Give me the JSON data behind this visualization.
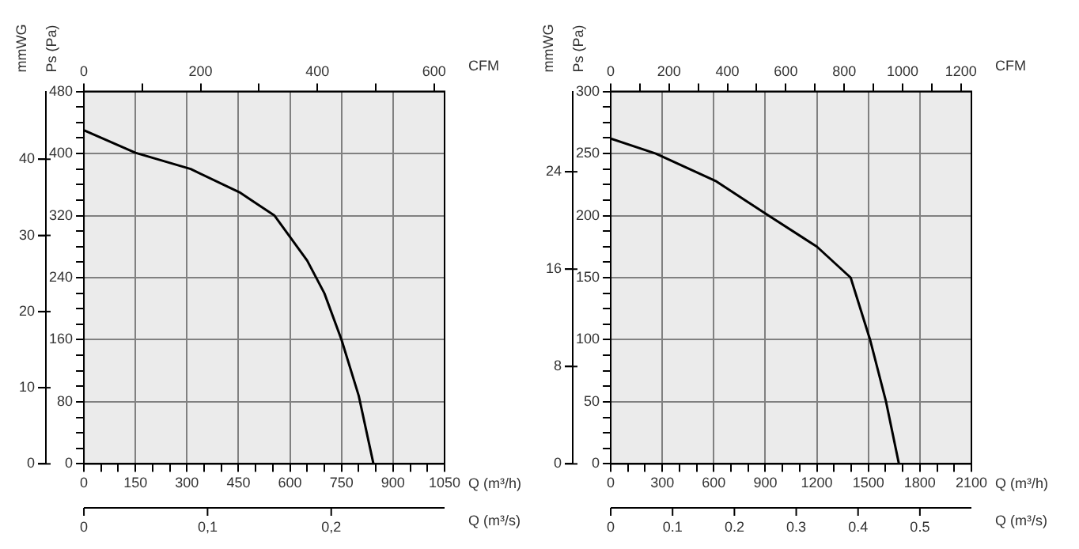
{
  "chart_data": [
    {
      "type": "line",
      "xlabel": "Q (m³/h)",
      "ylabel": "Ps (Pa)",
      "y2label": "mmWG",
      "x2label": "CFM",
      "grid": true,
      "marker": "none",
      "line_style": "solid",
      "series": [
        {
          "color": "#000000",
          "x": [
            0,
            150,
            311,
            453,
            555,
            650,
            700,
            750,
            800,
            843
          ],
          "values": [
            430,
            401,
            380,
            350,
            320,
            262,
            220,
            160,
            88,
            0
          ]
        }
      ],
      "xlim": [
        0,
        1050
      ],
      "xticks": [
        0,
        {
          "value": 50,
          "label": null
        },
        {
          "value": 100,
          "label": null
        },
        150,
        {
          "value": 200,
          "label": null
        },
        {
          "value": 250,
          "label": null
        },
        300,
        {
          "value": 350,
          "label": null
        },
        {
          "value": 400,
          "label": null
        },
        450,
        {
          "value": 500,
          "label": null
        },
        {
          "value": 550,
          "label": null
        },
        600,
        {
          "value": 650,
          "label": null
        },
        {
          "value": 700,
          "label": null
        },
        750,
        {
          "value": 800,
          "label": null
        },
        {
          "value": 850,
          "label": null
        },
        900,
        {
          "value": 950,
          "label": null
        },
        {
          "value": 1000,
          "label": null
        },
        1050
      ],
      "ylim": [
        0,
        480
      ],
      "yticks": [
        0,
        {
          "value": 20,
          "label": null
        },
        {
          "value": 40,
          "label": null
        },
        {
          "value": 60,
          "label": null
        },
        80,
        {
          "value": 100,
          "label": null
        },
        {
          "value": 120,
          "label": null
        },
        {
          "value": 140,
          "label": null
        },
        160,
        {
          "value": 180,
          "label": null
        },
        {
          "value": 200,
          "label": null
        },
        {
          "value": 220,
          "label": null
        },
        240,
        {
          "value": 260,
          "label": null
        },
        {
          "value": 280,
          "label": null
        },
        {
          "value": 300,
          "label": null
        },
        320,
        {
          "value": 340,
          "label": null
        },
        {
          "value": 360,
          "label": null
        },
        {
          "value": 380,
          "label": null
        },
        400,
        {
          "value": 420,
          "label": null
        },
        {
          "value": 440,
          "label": null
        },
        {
          "value": 460,
          "label": null
        },
        480
      ],
      "y2lim": [
        0,
        48.9
      ],
      "y2ticks": [
        0,
        10,
        20,
        30,
        40
      ],
      "x2lim": [
        0,
        618
      ],
      "x2ticks": [
        0,
        {
          "value": 100,
          "label": null
        },
        200,
        {
          "value": 300,
          "label": null
        },
        400,
        {
          "value": 500,
          "label": null
        },
        600
      ],
      "annotations": [
        "Q (m³/s)",
        "0",
        "0,1",
        "0,2"
      ]
    },
    {
      "type": "line",
      "xlabel": "Q (m³/h)",
      "ylabel": "Ps (Pa)",
      "y2label": "mmWG",
      "x2label": "CFM",
      "grid": true,
      "marker": "none",
      "line_style": "solid",
      "series": [
        {
          "color": "#000000",
          "x": [
            0,
            262,
            609,
            919,
            1200,
            1397,
            1510,
            1603,
            1678
          ],
          "values": [
            262,
            250,
            228,
            200,
            175,
            150,
            100,
            50,
            0
          ]
        }
      ],
      "xlim": [
        0,
        2100
      ],
      "xticks": [
        0,
        {
          "value": 100,
          "label": null
        },
        {
          "value": 200,
          "label": null
        },
        300,
        {
          "value": 400,
          "label": null
        },
        {
          "value": 500,
          "label": null
        },
        600,
        {
          "value": 700,
          "label": null
        },
        {
          "value": 800,
          "label": null
        },
        900,
        {
          "value": 1000,
          "label": null
        },
        {
          "value": 1100,
          "label": null
        },
        1200,
        {
          "value": 1300,
          "label": null
        },
        {
          "value": 1400,
          "label": null
        },
        1500,
        {
          "value": 1600,
          "label": null
        },
        {
          "value": 1700,
          "label": null
        },
        1800,
        {
          "value": 1900,
          "label": null
        },
        {
          "value": 2000,
          "label": null
        },
        2100
      ],
      "ylim": [
        0,
        300
      ],
      "yticks": [
        0,
        {
          "value": 12.5,
          "label": null
        },
        {
          "value": 25,
          "label": null
        },
        {
          "value": 37.5,
          "label": null
        },
        50,
        {
          "value": 62.5,
          "label": null
        },
        {
          "value": 75,
          "label": null
        },
        {
          "value": 87.5,
          "label": null
        },
        100,
        {
          "value": 112.5,
          "label": null
        },
        {
          "value": 125,
          "label": null
        },
        {
          "value": 137.5,
          "label": null
        },
        150,
        {
          "value": 162.5,
          "label": null
        },
        {
          "value": 175,
          "label": null
        },
        {
          "value": 187.5,
          "label": null
        },
        200,
        {
          "value": 212.5,
          "label": null
        },
        {
          "value": 225,
          "label": null
        },
        {
          "value": 237.5,
          "label": null
        },
        250,
        {
          "value": 262.5,
          "label": null
        },
        {
          "value": 275,
          "label": null
        },
        {
          "value": 287.5,
          "label": null
        },
        300
      ],
      "y2lim": [
        0,
        30.6
      ],
      "y2ticks": [
        0,
        8,
        16,
        24
      ],
      "x2lim": [
        0,
        1236
      ],
      "x2ticks": [
        0,
        {
          "value": 100,
          "label": null
        },
        200,
        {
          "value": 300,
          "label": null
        },
        400,
        {
          "value": 500,
          "label": null
        },
        600,
        {
          "value": 700,
          "label": null
        },
        800,
        {
          "value": 900,
          "label": null
        },
        1000,
        {
          "value": 1100,
          "label": null
        },
        1200
      ],
      "annotations": [
        "Q (m³/s)",
        "0",
        "0.1",
        "0.2",
        "0.3",
        "0.4",
        "0.5"
      ]
    }
  ]
}
